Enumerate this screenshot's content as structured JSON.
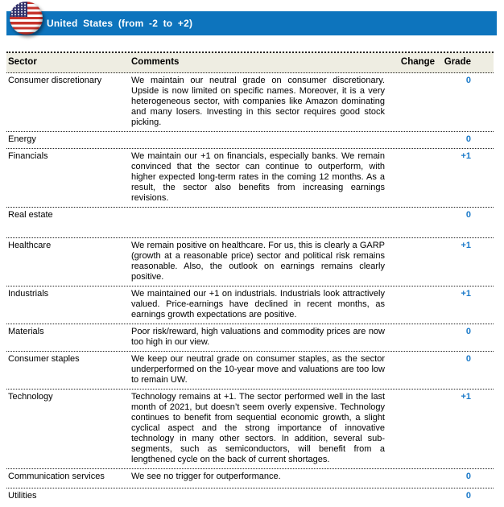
{
  "header": {
    "title": "United States (from -2 to +2)",
    "banner_color": "#0d74bd",
    "flag_icon": "us-flag-icon"
  },
  "table": {
    "columns": {
      "sector": "Sector",
      "comments": "Comments",
      "change": "Change",
      "grade": "Grade"
    },
    "grade_color": "#1b7ac9",
    "rows": [
      {
        "sector": "Consumer discretionary",
        "comment": "We maintain our neutral grade on consumer discretionary. Upside is now limited on specific names. Moreover, it is a very heterogeneous sector, with companies like Amazon dominating and many losers. Investing in this sector requires good stock picking.",
        "change": "",
        "grade": "0"
      },
      {
        "sector": "Energy",
        "comment": "",
        "change": "",
        "grade": "0"
      },
      {
        "sector": "Financials",
        "comment": "We maintain our +1 on financials, especially banks. We remain convinced that the sector can continue to outperform, with higher expected long-term rates in the coming 12 months. As a result, the sector also benefits from increasing earnings revisions.",
        "change": "",
        "grade": "+1"
      },
      {
        "sector": "Real estate",
        "comment": "",
        "change": "",
        "grade": "0"
      },
      {
        "sector": "Healthcare",
        "comment": "We remain positive on healthcare. For us, this is clearly a GARP (growth at a reasonable price) sector and political risk remains reasonable. Also, the outlook on earnings remains clearly positive.",
        "change": "",
        "grade": "+1"
      },
      {
        "sector": "Industrials",
        "comment": "We maintained our +1 on industrials. Industrials look attractively valued. Price-earnings have declined in recent months, as earnings growth expectations are positive.",
        "change": "",
        "grade": "+1"
      },
      {
        "sector": "Materials",
        "comment": "Poor risk/reward, high valuations and commodity prices are now too high in our view.",
        "change": "",
        "grade": "0"
      },
      {
        "sector": "Consumer staples",
        "comment": "We keep our neutral grade on consumer staples, as the sector underperformed on the 10-year move and valuations are too low to remain UW.",
        "change": "",
        "grade": "0"
      },
      {
        "sector": "Technology",
        "comment": "Technology remains at +1. The sector performed well in the last month of 2021, but doesn’t seem overly expensive. Technology continues to benefit from sequential economic growth, a slight cyclical aspect and the strong importance of innovative technology in many other sectors. In addition, several sub-segments, such as semiconductors, will benefit from a lengthened cycle on the back of current shortages.",
        "change": "",
        "grade": "+1"
      },
      {
        "sector": "Communication services",
        "comment": "We see no trigger for outperformance.",
        "change": "",
        "grade": "0"
      },
      {
        "sector": "Utilities",
        "comment": "",
        "change": "",
        "grade": "0"
      }
    ]
  }
}
